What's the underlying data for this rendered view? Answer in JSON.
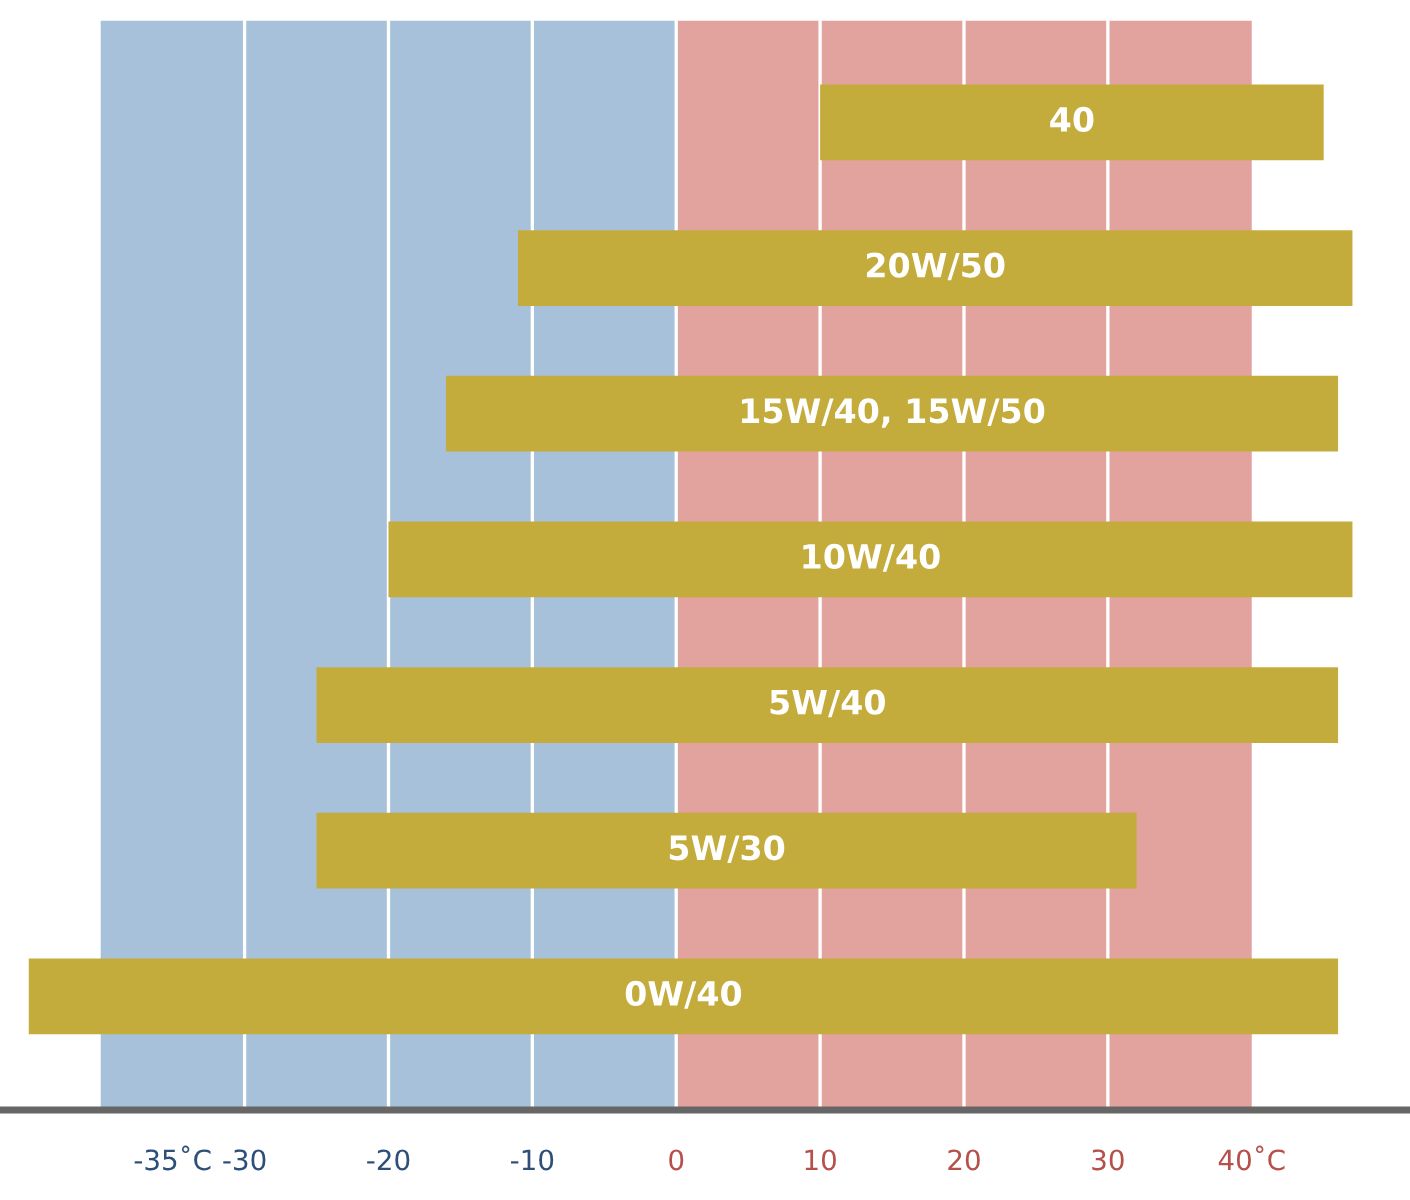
{
  "chart_data": {
    "type": "bar",
    "orientation": "horizontal",
    "categories": [
      "40",
      "20W/50",
      "15W/40, 15W/50",
      "10W/40",
      "5W/40",
      "5W/30",
      "0W/40"
    ],
    "base": [
      10,
      -11,
      -16,
      -20,
      -25,
      -25,
      -45
    ],
    "values": [
      35,
      58,
      62,
      67,
      71,
      57,
      91
    ],
    "color": "#c4ac3c",
    "xlim": [
      -47,
      51
    ],
    "xticks": [
      {
        "value": -35,
        "label": "-35˚C"
      },
      -30,
      -20,
      -10,
      0,
      10,
      20,
      30,
      {
        "value": 40,
        "label": "40˚C"
      }
    ],
    "tick_labels": "x",
    "grid": "x",
    "bands": [
      {
        "axis": "x",
        "from": -40,
        "to": 0,
        "label": null,
        "color": "#a7c1da"
      },
      {
        "axis": "x",
        "from": 0,
        "to": 40,
        "label": null,
        "color": "#e2a29d"
      }
    ]
  }
}
